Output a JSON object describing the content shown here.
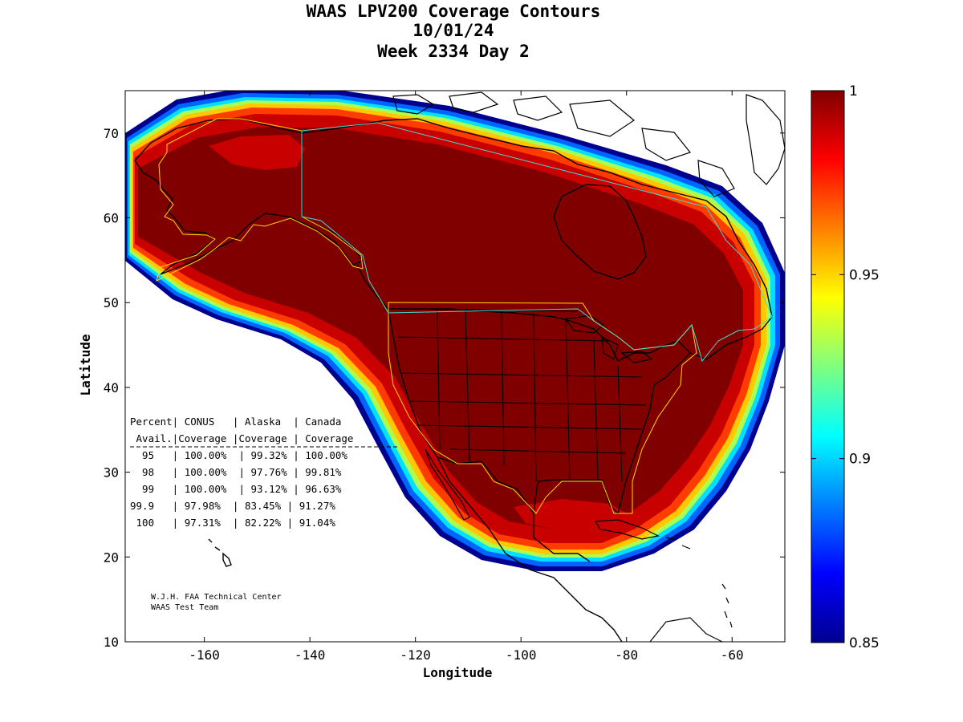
{
  "chart_data": {
    "type": "heatmap",
    "title_lines": [
      "WAAS LPV200 Coverage Contours",
      "10/01/24",
      "Week 2334 Day 2"
    ],
    "xlabel": "Longitude",
    "ylabel": "Latitude",
    "xlim": [
      -175,
      -50
    ],
    "ylim": [
      10,
      75
    ],
    "xticks": [
      -160,
      -140,
      -120,
      -100,
      -80,
      -60
    ],
    "yticks": [
      10,
      20,
      30,
      40,
      50,
      60,
      70
    ],
    "xtick_labels": [
      "-160",
      "-140",
      "-120",
      "-100",
      "-80",
      "-60"
    ],
    "ytick_labels": [
      "10",
      "20",
      "30",
      "40",
      "50",
      "60",
      "70"
    ],
    "colorbar": {
      "range": [
        0.85,
        1
      ],
      "ticks": [
        0.85,
        0.9,
        0.95,
        1
      ],
      "tick_labels": [
        "0.85",
        "0.9",
        "0.95",
        "1"
      ],
      "colormap": "jet"
    },
    "grid": false,
    "coverage_table": {
      "rows": [
        "Percent| CONUS   | Alaska  | Canada",
        " Avail.|Coverage |Coverage | Coverage",
        "  95   | 100.00%  | 99.32% | 100.00%",
        "  98   | 100.00%  | 97.76% | 99.81%",
        "  99   | 100.00%  | 93.12% | 96.63%",
        "99.9   | 97.98%  | 83.45% | 91.27%",
        " 100   | 97.31%  | 82.22% | 91.04%"
      ]
    },
    "credit_lines": [
      "W.J.H. FAA Technical Center",
      "WAAS Test Team"
    ]
  }
}
